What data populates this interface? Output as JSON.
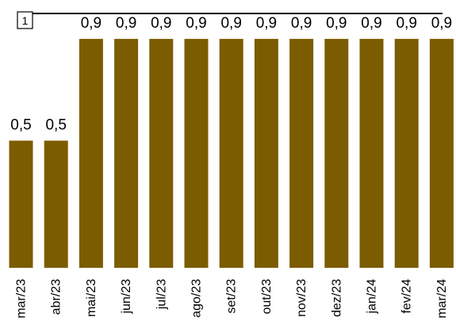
{
  "chart_data": {
    "type": "bar",
    "categories": [
      "mar/23",
      "abr/23",
      "mai/23",
      "jun/23",
      "jul/23",
      "ago/23",
      "set/23",
      "out/23",
      "nov/23",
      "dez/23",
      "jan/24",
      "fev/24",
      "mar/24"
    ],
    "values": [
      0.5,
      0.5,
      0.9,
      0.9,
      0.9,
      0.9,
      0.9,
      0.9,
      0.9,
      0.9,
      0.9,
      0.9,
      0.9
    ],
    "data_labels": [
      "0,5",
      "0,5",
      "0,9",
      "0,9",
      "0,9",
      "0,9",
      "0,9",
      "0,9",
      "0,9",
      "0,9",
      "0,9",
      "0,9",
      "0,9"
    ],
    "reference_line": {
      "value": 1,
      "label": "1"
    },
    "ylim": [
      0,
      1
    ],
    "bar_color": "#7b5c00",
    "line_color": "#000000",
    "grid": false,
    "legend": "none",
    "title": "",
    "xlabel": "",
    "ylabel": ""
  }
}
